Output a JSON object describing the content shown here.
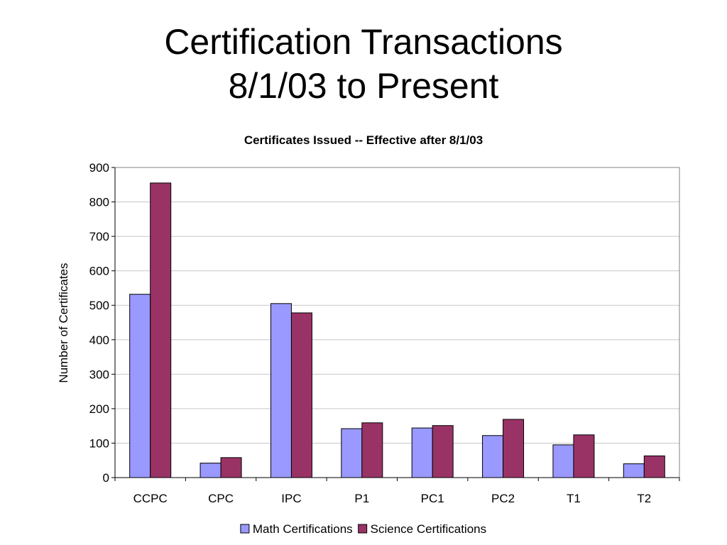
{
  "slide": {
    "title_line1": "Certification Transactions",
    "title_line2": "8/1/03 to Present"
  },
  "chart_data": {
    "type": "bar",
    "title": "Certificates Issued -- Effective after 8/1/03",
    "xlabel": "",
    "ylabel": "Number of Certificates",
    "ylim": [
      0,
      900
    ],
    "yticks": [
      0,
      100,
      200,
      300,
      400,
      500,
      600,
      700,
      800,
      900
    ],
    "grid": true,
    "legend_position": "bottom",
    "categories": [
      "CCPC",
      "CPC",
      "IPC",
      "P1",
      "PC1",
      "PC2",
      "T1",
      "T2"
    ],
    "series": [
      {
        "name": "Math Certifications",
        "color": "#9999FF",
        "values": [
          532,
          42,
          505,
          142,
          144,
          122,
          95,
          40
        ]
      },
      {
        "name": "Science Certifications",
        "color": "#993366",
        "values": [
          855,
          58,
          478,
          159,
          151,
          169,
          124,
          63
        ]
      }
    ]
  }
}
